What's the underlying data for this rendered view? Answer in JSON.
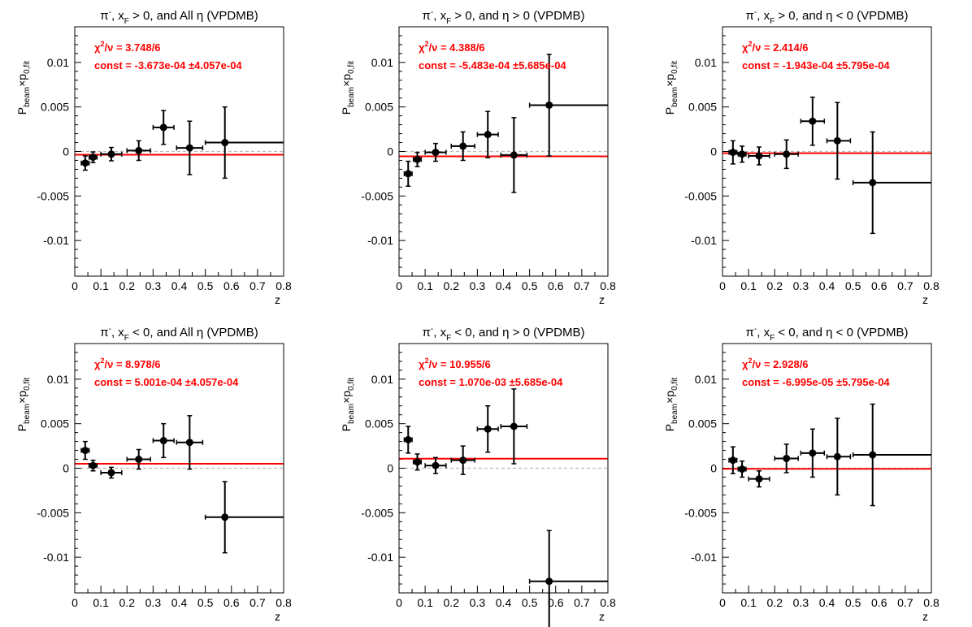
{
  "colors": {
    "fit_line": "#ff0000",
    "markers": "#000000",
    "zero_line": "#bbbbbb",
    "fit_text": "#ff0000"
  },
  "y_label": {
    "main": "P",
    "sub1": "beam",
    "cross": "×p",
    "sub2": "0,fit"
  },
  "chart_data": [
    {
      "type": "scatter",
      "title": {
        "pre": "π",
        "sup": "-",
        "mid1": ", x",
        "sub": "F",
        "rest": " > 0, and All  η (VPDMB)"
      },
      "xlabel": "z",
      "xlim": [
        0,
        0.8
      ],
      "ylim": [
        -0.014,
        0.014
      ],
      "xticks": [
        "0",
        "0.1",
        "0.2",
        "0.3",
        "0.4",
        "0.5",
        "0.6",
        "0.7",
        "0.8"
      ],
      "yticks": [
        {
          "v": 0.01,
          "label": "0.01"
        },
        {
          "v": 0.005,
          "label": "0.005"
        },
        {
          "v": 0,
          "label": "0"
        },
        {
          "v": -0.005,
          "label": "-0.005"
        },
        {
          "v": -0.01,
          "label": "-0.01"
        }
      ],
      "chi2": {
        "label": "χ",
        "sup": "2",
        "rest": "/ν = 3.748/6"
      },
      "const_text": "const = -3.673e-04  ±4.057e-04",
      "fit_value": -0.00037,
      "points": [
        {
          "x": 0.04,
          "y": -0.0013,
          "xlo": 0.025,
          "xhi": 0.055,
          "err": 0.0008
        },
        {
          "x": 0.07,
          "y": -0.00065,
          "xlo": 0.055,
          "xhi": 0.085,
          "err": 0.0006
        },
        {
          "x": 0.14,
          "y": -0.0003,
          "xlo": 0.1,
          "xhi": 0.18,
          "err": 0.00075
        },
        {
          "x": 0.245,
          "y": 0.0001,
          "xlo": 0.2,
          "xhi": 0.29,
          "err": 0.0011
        },
        {
          "x": 0.34,
          "y": 0.0027,
          "xlo": 0.3,
          "xhi": 0.38,
          "err": 0.0019
        },
        {
          "x": 0.44,
          "y": 0.0004,
          "xlo": 0.39,
          "xhi": 0.49,
          "err": 0.003
        },
        {
          "x": 0.575,
          "y": 0.001,
          "xlo": 0.5,
          "xhi": 0.8,
          "err": 0.004
        }
      ]
    },
    {
      "type": "scatter",
      "title": {
        "pre": "π",
        "sup": "-",
        "mid1": ", x",
        "sub": "F",
        "rest": " > 0, and η > 0 (VPDMB)"
      },
      "xlabel": "z",
      "xlim": [
        0,
        0.8
      ],
      "ylim": [
        -0.014,
        0.014
      ],
      "xticks": [
        "0",
        "0.1",
        "0.2",
        "0.3",
        "0.4",
        "0.5",
        "0.6",
        "0.7",
        "0.8"
      ],
      "yticks": [
        {
          "v": 0.01,
          "label": "0.01"
        },
        {
          "v": 0.005,
          "label": "0.005"
        },
        {
          "v": 0,
          "label": "0"
        },
        {
          "v": -0.005,
          "label": "-0.005"
        },
        {
          "v": -0.01,
          "label": "-0.01"
        }
      ],
      "chi2": {
        "label": "χ",
        "sup": "2",
        "rest": "/ν = 4.388/6"
      },
      "const_text": "const = -5.483e-04  ±5.685e-04",
      "fit_value": -0.00055,
      "points": [
        {
          "x": 0.035,
          "y": -0.0025,
          "xlo": 0.02,
          "xhi": 0.05,
          "err": 0.0014
        },
        {
          "x": 0.07,
          "y": -0.0009,
          "xlo": 0.055,
          "xhi": 0.085,
          "err": 0.0008
        },
        {
          "x": 0.14,
          "y": -0.0001,
          "xlo": 0.1,
          "xhi": 0.18,
          "err": 0.001
        },
        {
          "x": 0.245,
          "y": 0.0006,
          "xlo": 0.2,
          "xhi": 0.29,
          "err": 0.0016
        },
        {
          "x": 0.34,
          "y": 0.0019,
          "xlo": 0.3,
          "xhi": 0.38,
          "err": 0.0026
        },
        {
          "x": 0.44,
          "y": -0.0004,
          "xlo": 0.39,
          "xhi": 0.49,
          "err": 0.0042
        },
        {
          "x": 0.575,
          "y": 0.0052,
          "xlo": 0.5,
          "xhi": 0.8,
          "err": 0.0057
        }
      ]
    },
    {
      "type": "scatter",
      "title": {
        "pre": "π",
        "sup": "-",
        "mid1": ", x",
        "sub": "F",
        "rest": " > 0, and η < 0 (VPDMB)"
      },
      "xlabel": "z",
      "xlim": [
        0,
        0.8
      ],
      "ylim": [
        -0.014,
        0.014
      ],
      "xticks": [
        "0",
        "0.1",
        "0.2",
        "0.3",
        "0.4",
        "0.5",
        "0.6",
        "0.7",
        "0.8"
      ],
      "yticks": [
        {
          "v": 0.01,
          "label": "0.01"
        },
        {
          "v": 0.005,
          "label": "0.005"
        },
        {
          "v": 0,
          "label": "0"
        },
        {
          "v": -0.005,
          "label": "-0.005"
        },
        {
          "v": -0.01,
          "label": "-0.01"
        }
      ],
      "chi2": {
        "label": "χ",
        "sup": "2",
        "rest": "/ν = 2.414/6"
      },
      "const_text": "const = -1.943e-04  ±5.795e-04",
      "fit_value": -0.00019,
      "points": [
        {
          "x": 0.04,
          "y": -0.0001,
          "xlo": 0.025,
          "xhi": 0.055,
          "err": 0.0013
        },
        {
          "x": 0.075,
          "y": -0.0003,
          "xlo": 0.06,
          "xhi": 0.09,
          "err": 0.0009
        },
        {
          "x": 0.14,
          "y": -0.0005,
          "xlo": 0.1,
          "xhi": 0.18,
          "err": 0.001
        },
        {
          "x": 0.245,
          "y": -0.0003,
          "xlo": 0.2,
          "xhi": 0.29,
          "err": 0.0016
        },
        {
          "x": 0.345,
          "y": 0.0034,
          "xlo": 0.3,
          "xhi": 0.39,
          "err": 0.0027
        },
        {
          "x": 0.44,
          "y": 0.0012,
          "xlo": 0.4,
          "xhi": 0.49,
          "err": 0.0043
        },
        {
          "x": 0.575,
          "y": -0.0035,
          "xlo": 0.5,
          "xhi": 0.8,
          "err": 0.0057
        }
      ]
    },
    {
      "type": "scatter",
      "title": {
        "pre": "π",
        "sup": "-",
        "mid1": ", x",
        "sub": "F",
        "rest": " < 0, and All  η (VPDMB)"
      },
      "xlabel": "z",
      "xlim": [
        0,
        0.8
      ],
      "ylim": [
        -0.014,
        0.014
      ],
      "xticks": [
        "0",
        "0.1",
        "0.2",
        "0.3",
        "0.4",
        "0.5",
        "0.6",
        "0.7",
        "0.8"
      ],
      "yticks": [
        {
          "v": 0.01,
          "label": "0.01"
        },
        {
          "v": 0.005,
          "label": "0.005"
        },
        {
          "v": 0,
          "label": "0"
        },
        {
          "v": -0.005,
          "label": "-0.005"
        },
        {
          "v": -0.01,
          "label": "-0.01"
        }
      ],
      "chi2": {
        "label": "χ",
        "sup": "2",
        "rest": "/ν = 8.978/6"
      },
      "const_text": "const = 5.001e-04  ±4.057e-04",
      "fit_value": 0.0005,
      "points": [
        {
          "x": 0.04,
          "y": 0.002,
          "xlo": 0.025,
          "xhi": 0.055,
          "err": 0.001
        },
        {
          "x": 0.07,
          "y": 0.0003,
          "xlo": 0.055,
          "xhi": 0.085,
          "err": 0.0006
        },
        {
          "x": 0.14,
          "y": -0.0005,
          "xlo": 0.1,
          "xhi": 0.18,
          "err": 0.0006
        },
        {
          "x": 0.245,
          "y": 0.001,
          "xlo": 0.2,
          "xhi": 0.29,
          "err": 0.0011
        },
        {
          "x": 0.34,
          "y": 0.0031,
          "xlo": 0.3,
          "xhi": 0.38,
          "err": 0.0019
        },
        {
          "x": 0.44,
          "y": 0.0029,
          "xlo": 0.39,
          "xhi": 0.49,
          "err": 0.003
        },
        {
          "x": 0.575,
          "y": -0.0055,
          "xlo": 0.5,
          "xhi": 0.8,
          "err": 0.004
        }
      ]
    },
    {
      "type": "scatter",
      "title": {
        "pre": "π",
        "sup": "-",
        "mid1": ", x",
        "sub": "F",
        "rest": " < 0, and η > 0 (VPDMB)"
      },
      "xlabel": "z",
      "xlim": [
        0,
        0.8
      ],
      "ylim": [
        -0.014,
        0.014
      ],
      "xticks": [
        "0",
        "0.1",
        "0.2",
        "0.3",
        "0.4",
        "0.5",
        "0.6",
        "0.7",
        "0.8"
      ],
      "yticks": [
        {
          "v": 0.01,
          "label": "0.01"
        },
        {
          "v": 0.005,
          "label": "0.005"
        },
        {
          "v": 0,
          "label": "0"
        },
        {
          "v": -0.005,
          "label": "-0.005"
        },
        {
          "v": -0.01,
          "label": "-0.01"
        }
      ],
      "chi2": {
        "label": "χ",
        "sup": "2",
        "rest": "/ν = 10.955/6"
      },
      "const_text": "const = 1.070e-03  ±5.685e-04",
      "fit_value": 0.00107,
      "points": [
        {
          "x": 0.035,
          "y": 0.0032,
          "xlo": 0.02,
          "xhi": 0.05,
          "err": 0.0015
        },
        {
          "x": 0.07,
          "y": 0.0007,
          "xlo": 0.055,
          "xhi": 0.085,
          "err": 0.0009
        },
        {
          "x": 0.14,
          "y": 0.0003,
          "xlo": 0.1,
          "xhi": 0.18,
          "err": 0.0009
        },
        {
          "x": 0.245,
          "y": 0.0009,
          "xlo": 0.2,
          "xhi": 0.29,
          "err": 0.0016
        },
        {
          "x": 0.34,
          "y": 0.0044,
          "xlo": 0.3,
          "xhi": 0.38,
          "err": 0.0026
        },
        {
          "x": 0.44,
          "y": 0.0047,
          "xlo": 0.39,
          "xhi": 0.49,
          "err": 0.0042
        },
        {
          "x": 0.575,
          "y": -0.0127,
          "xlo": 0.5,
          "xhi": 0.8,
          "err": 0.0057
        }
      ]
    },
    {
      "type": "scatter",
      "title": {
        "pre": "π",
        "sup": "-",
        "mid1": ", x",
        "sub": "F",
        "rest": " < 0, and η < 0 (VPDMB)"
      },
      "xlabel": "z",
      "xlim": [
        0,
        0.8
      ],
      "ylim": [
        -0.014,
        0.014
      ],
      "xticks": [
        "0",
        "0.1",
        "0.2",
        "0.3",
        "0.4",
        "0.5",
        "0.6",
        "0.7",
        "0.8"
      ],
      "yticks": [
        {
          "v": 0.01,
          "label": "0.01"
        },
        {
          "v": 0.005,
          "label": "0.005"
        },
        {
          "v": 0,
          "label": "0"
        },
        {
          "v": -0.005,
          "label": "-0.005"
        },
        {
          "v": -0.01,
          "label": "-0.01"
        }
      ],
      "chi2": {
        "label": "χ",
        "sup": "2",
        "rest": "/ν = 2.928/6"
      },
      "const_text": "const = -6.995e-05  ±5.795e-04",
      "fit_value": -7e-05,
      "points": [
        {
          "x": 0.04,
          "y": 0.0009,
          "xlo": 0.025,
          "xhi": 0.055,
          "err": 0.0015
        },
        {
          "x": 0.075,
          "y": -0.0001,
          "xlo": 0.06,
          "xhi": 0.09,
          "err": 0.0009
        },
        {
          "x": 0.14,
          "y": -0.0012,
          "xlo": 0.1,
          "xhi": 0.18,
          "err": 0.0009
        },
        {
          "x": 0.245,
          "y": 0.0011,
          "xlo": 0.2,
          "xhi": 0.29,
          "err": 0.0016
        },
        {
          "x": 0.345,
          "y": 0.0017,
          "xlo": 0.3,
          "xhi": 0.39,
          "err": 0.0027
        },
        {
          "x": 0.44,
          "y": 0.0013,
          "xlo": 0.4,
          "xhi": 0.49,
          "err": 0.0043
        },
        {
          "x": 0.575,
          "y": 0.0015,
          "xlo": 0.5,
          "xhi": 0.8,
          "err": 0.0057
        }
      ]
    }
  ]
}
